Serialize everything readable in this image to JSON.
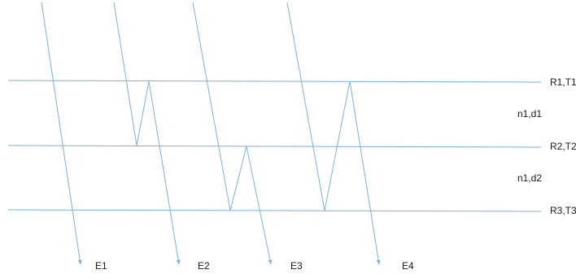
{
  "diagram": {
    "line_color": "#7fb0d8",
    "text_color": "#1a1a1a",
    "interfaces": [
      {
        "label": "R1,T1"
      },
      {
        "label": "R2,T2"
      },
      {
        "label": "R3,T3"
      }
    ],
    "layers": [
      {
        "label": "n1,d1"
      },
      {
        "label": "n1,d2"
      }
    ],
    "exit_rays": [
      {
        "label": "E1"
      },
      {
        "label": "E2"
      },
      {
        "label": "E3"
      },
      {
        "label": "E4"
      }
    ]
  }
}
